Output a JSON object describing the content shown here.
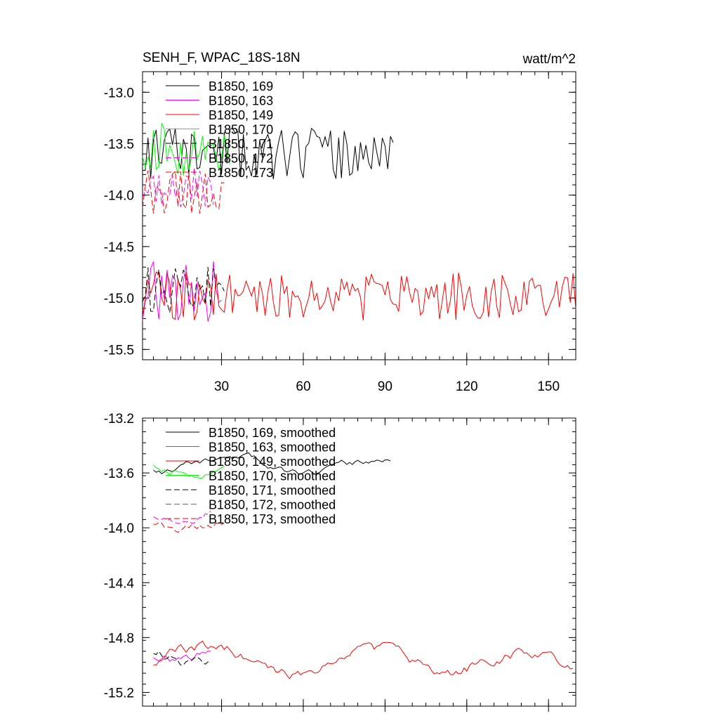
{
  "chart_data": [
    {
      "type": "line",
      "title": "SENH_F, WPAC_18S-18N",
      "units": "watt/m^2",
      "xlim": [
        1,
        160
      ],
      "ylim": [
        -15.6,
        -12.8
      ],
      "xticks": [
        30,
        60,
        90,
        120,
        150
      ],
      "xtick_labels": [
        "30",
        "60",
        "90",
        "120",
        "150"
      ],
      "yticks": [
        -15.5,
        -15.0,
        -14.5,
        -14.0,
        -13.5,
        -13.0
      ],
      "ytick_labels": [
        "-15.5",
        "-15.0",
        "-14.5",
        "-14.0",
        "-13.5",
        "-13.0"
      ],
      "legend": "top-left",
      "series": [
        {
          "name": "B1850, 169",
          "color": "#000000",
          "dash": "solid",
          "length": 93,
          "mean": -13.6,
          "amp": 0.18,
          "seed": 11
        },
        {
          "name": "B1850, 163",
          "color": "#ff00ff",
          "dash": "solid",
          "length": 30,
          "mean": -14.95,
          "amp": 0.22,
          "seed": 23
        },
        {
          "name": "B1850, 149",
          "color": "#ff0000",
          "dash": "solid",
          "length": 160,
          "mean": -14.98,
          "amp": 0.17,
          "seed": 37
        },
        {
          "name": "B1850, 170",
          "color": "#00ff00",
          "dash": "solid",
          "length": 33,
          "mean": -13.55,
          "amp": 0.2,
          "seed": 41
        },
        {
          "name": "B1850, 171",
          "color": "#000000",
          "dash": "dashed",
          "length": 31,
          "mean": -14.92,
          "amp": 0.16,
          "seed": 53
        },
        {
          "name": "B1850, 172",
          "color": "#ff00ff",
          "dash": "dashed",
          "length": 27,
          "mean": -13.93,
          "amp": 0.14,
          "seed": 67
        },
        {
          "name": "B1850, 173",
          "color": "#ff0000",
          "dash": "dashed",
          "length": 31,
          "mean": -13.97,
          "amp": 0.15,
          "seed": 79
        }
      ]
    },
    {
      "type": "line",
      "title": "",
      "xlim": [
        1,
        160
      ],
      "ylim": [
        -15.3,
        -13.2
      ],
      "xticks": [
        30,
        60,
        90,
        120,
        150
      ],
      "xtick_labels": [],
      "yticks": [
        -15.2,
        -14.8,
        -14.4,
        -14.0,
        -13.6,
        -13.2
      ],
      "ytick_labels": [
        "-15.2",
        "-14.8",
        "-14.4",
        "-14.0",
        "-13.6",
        "-13.2"
      ],
      "legend": "top-left",
      "series": [
        {
          "name": "B1850, 169, smoothed",
          "color": "#000000",
          "dash": "solid",
          "start": 5,
          "length": 88,
          "mean": -13.56,
          "amp": 0.035,
          "seed": 11
        },
        {
          "name": "B1850, 163, smoothed",
          "color": "#ff00ff",
          "dash": "solid",
          "start": 5,
          "length": 22,
          "mean": -14.91,
          "amp": 0.05,
          "seed": 23
        },
        {
          "name": "B1850, 149, smoothed",
          "color": "#ff0000",
          "dash": "solid",
          "start": 5,
          "length": 155,
          "mean": -14.97,
          "amp": 0.06,
          "seed": 37
        },
        {
          "name": "B1850, 170, smoothed",
          "color": "#00ff00",
          "dash": "solid",
          "start": 5,
          "length": 27,
          "mean": -13.53,
          "amp": 0.04,
          "seed": 41
        },
        {
          "name": "B1850, 171, smoothed",
          "color": "#000000",
          "dash": "dashed",
          "start": 5,
          "length": 22,
          "mean": -14.9,
          "amp": 0.05,
          "seed": 53
        },
        {
          "name": "B1850, 172, smoothed",
          "color": "#ff00ff",
          "dash": "dashed",
          "start": 5,
          "length": 22,
          "mean": -13.9,
          "amp": 0.04,
          "seed": 67
        },
        {
          "name": "B1850, 173, smoothed",
          "color": "#ff0000",
          "dash": "dashed",
          "start": 5,
          "length": 27,
          "mean": -13.95,
          "amp": 0.04,
          "seed": 79
        }
      ]
    }
  ]
}
